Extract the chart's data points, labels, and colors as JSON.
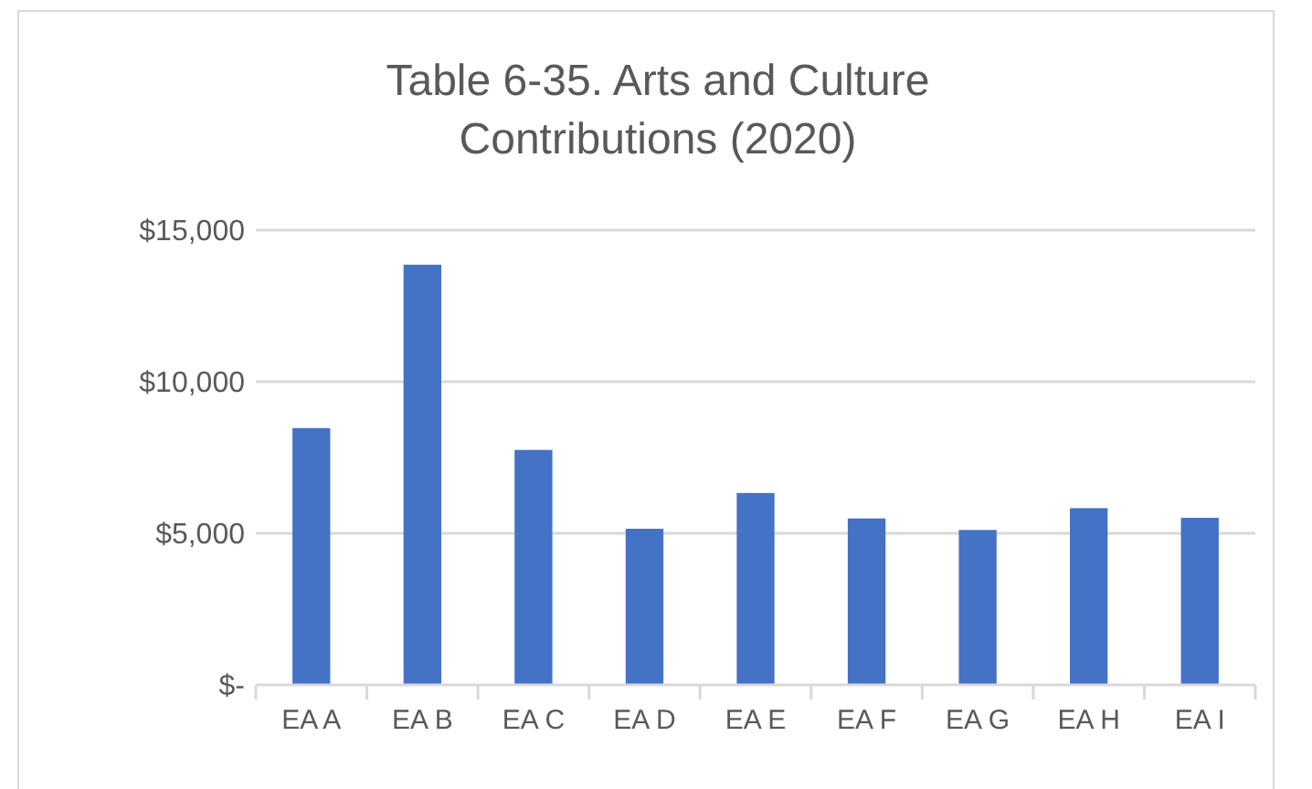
{
  "chart_data": {
    "type": "bar",
    "title": "Table 6-35. Arts and Culture Contributions (2020)",
    "categories": [
      "EA A",
      "EA B",
      "EA C",
      "EA D",
      "EA E",
      "EA F",
      "EA G",
      "EA H",
      "EA I"
    ],
    "values": [
      8470,
      13860,
      7750,
      5150,
      6330,
      5490,
      5110,
      5830,
      5510
    ],
    "color": "#4472c4",
    "ylim": [
      0,
      15000
    ],
    "yticks": [
      {
        "value": 0,
        "label": "$-"
      },
      {
        "value": 5000,
        "label": "$5,000"
      },
      {
        "value": 10000,
        "label": "$10,000"
      },
      {
        "value": 15000,
        "label": "$15,000"
      }
    ],
    "grid": "y"
  }
}
